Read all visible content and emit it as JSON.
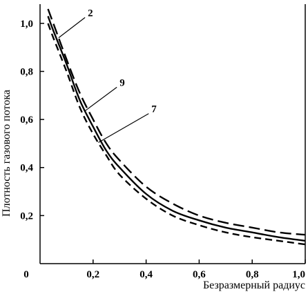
{
  "chart_data": {
    "type": "line",
    "xlabel": "Безразмерный радиус",
    "ylabel": "Плотность газового потока",
    "xlim": [
      0,
      1.0
    ],
    "ylim": [
      0,
      1.08
    ],
    "x_origin_label": "0",
    "x_ticks": [
      {
        "value": 0.2,
        "label": "0,2"
      },
      {
        "value": 0.4,
        "label": "0,4"
      },
      {
        "value": 0.6,
        "label": "0,6"
      },
      {
        "value": 0.8,
        "label": "0,8"
      },
      {
        "value": 1.0,
        "label": "1,0"
      }
    ],
    "y_ticks": [
      {
        "value": 0.2,
        "label": "0,2"
      },
      {
        "value": 0.4,
        "label": "0,4"
      },
      {
        "value": 0.6,
        "label": "0,6"
      },
      {
        "value": 0.8,
        "label": "0,8"
      },
      {
        "value": 1.0,
        "label": "1,0"
      }
    ],
    "grid": false,
    "legend": "none",
    "series": [
      {
        "name": "2",
        "dash": "long",
        "x": [
          0.03,
          0.05,
          0.1,
          0.15,
          0.2,
          0.25,
          0.3,
          0.4,
          0.5,
          0.6,
          0.7,
          0.8,
          0.9,
          1.0
        ],
        "y": [
          1.06,
          1.0,
          0.85,
          0.71,
          0.6,
          0.5,
          0.43,
          0.32,
          0.25,
          0.2,
          0.17,
          0.15,
          0.13,
          0.12
        ]
      },
      {
        "name": "9",
        "dash": "solid",
        "x": [
          0.03,
          0.05,
          0.1,
          0.15,
          0.2,
          0.25,
          0.3,
          0.4,
          0.5,
          0.6,
          0.7,
          0.8,
          0.9,
          1.0
        ],
        "y": [
          1.03,
          0.97,
          0.83,
          0.68,
          0.57,
          0.47,
          0.4,
          0.29,
          0.22,
          0.18,
          0.15,
          0.13,
          0.11,
          0.095
        ]
      },
      {
        "name": "7",
        "dash": "medium",
        "x": [
          0.03,
          0.05,
          0.1,
          0.15,
          0.2,
          0.25,
          0.3,
          0.4,
          0.5,
          0.6,
          0.7,
          0.8,
          0.9,
          1.0
        ],
        "y": [
          1.0,
          0.94,
          0.8,
          0.65,
          0.54,
          0.45,
          0.37,
          0.27,
          0.2,
          0.16,
          0.13,
          0.11,
          0.095,
          0.08
        ]
      }
    ],
    "annotations": [
      {
        "text": "2",
        "series": "2",
        "at_x": 0.07,
        "label_x": 0.18,
        "label_y": 1.03
      },
      {
        "text": "9",
        "series": "9",
        "at_x": 0.17,
        "label_x": 0.3,
        "label_y": 0.74
      },
      {
        "text": "7",
        "series": "7",
        "at_x": 0.22,
        "label_x": 0.42,
        "label_y": 0.63
      }
    ]
  }
}
